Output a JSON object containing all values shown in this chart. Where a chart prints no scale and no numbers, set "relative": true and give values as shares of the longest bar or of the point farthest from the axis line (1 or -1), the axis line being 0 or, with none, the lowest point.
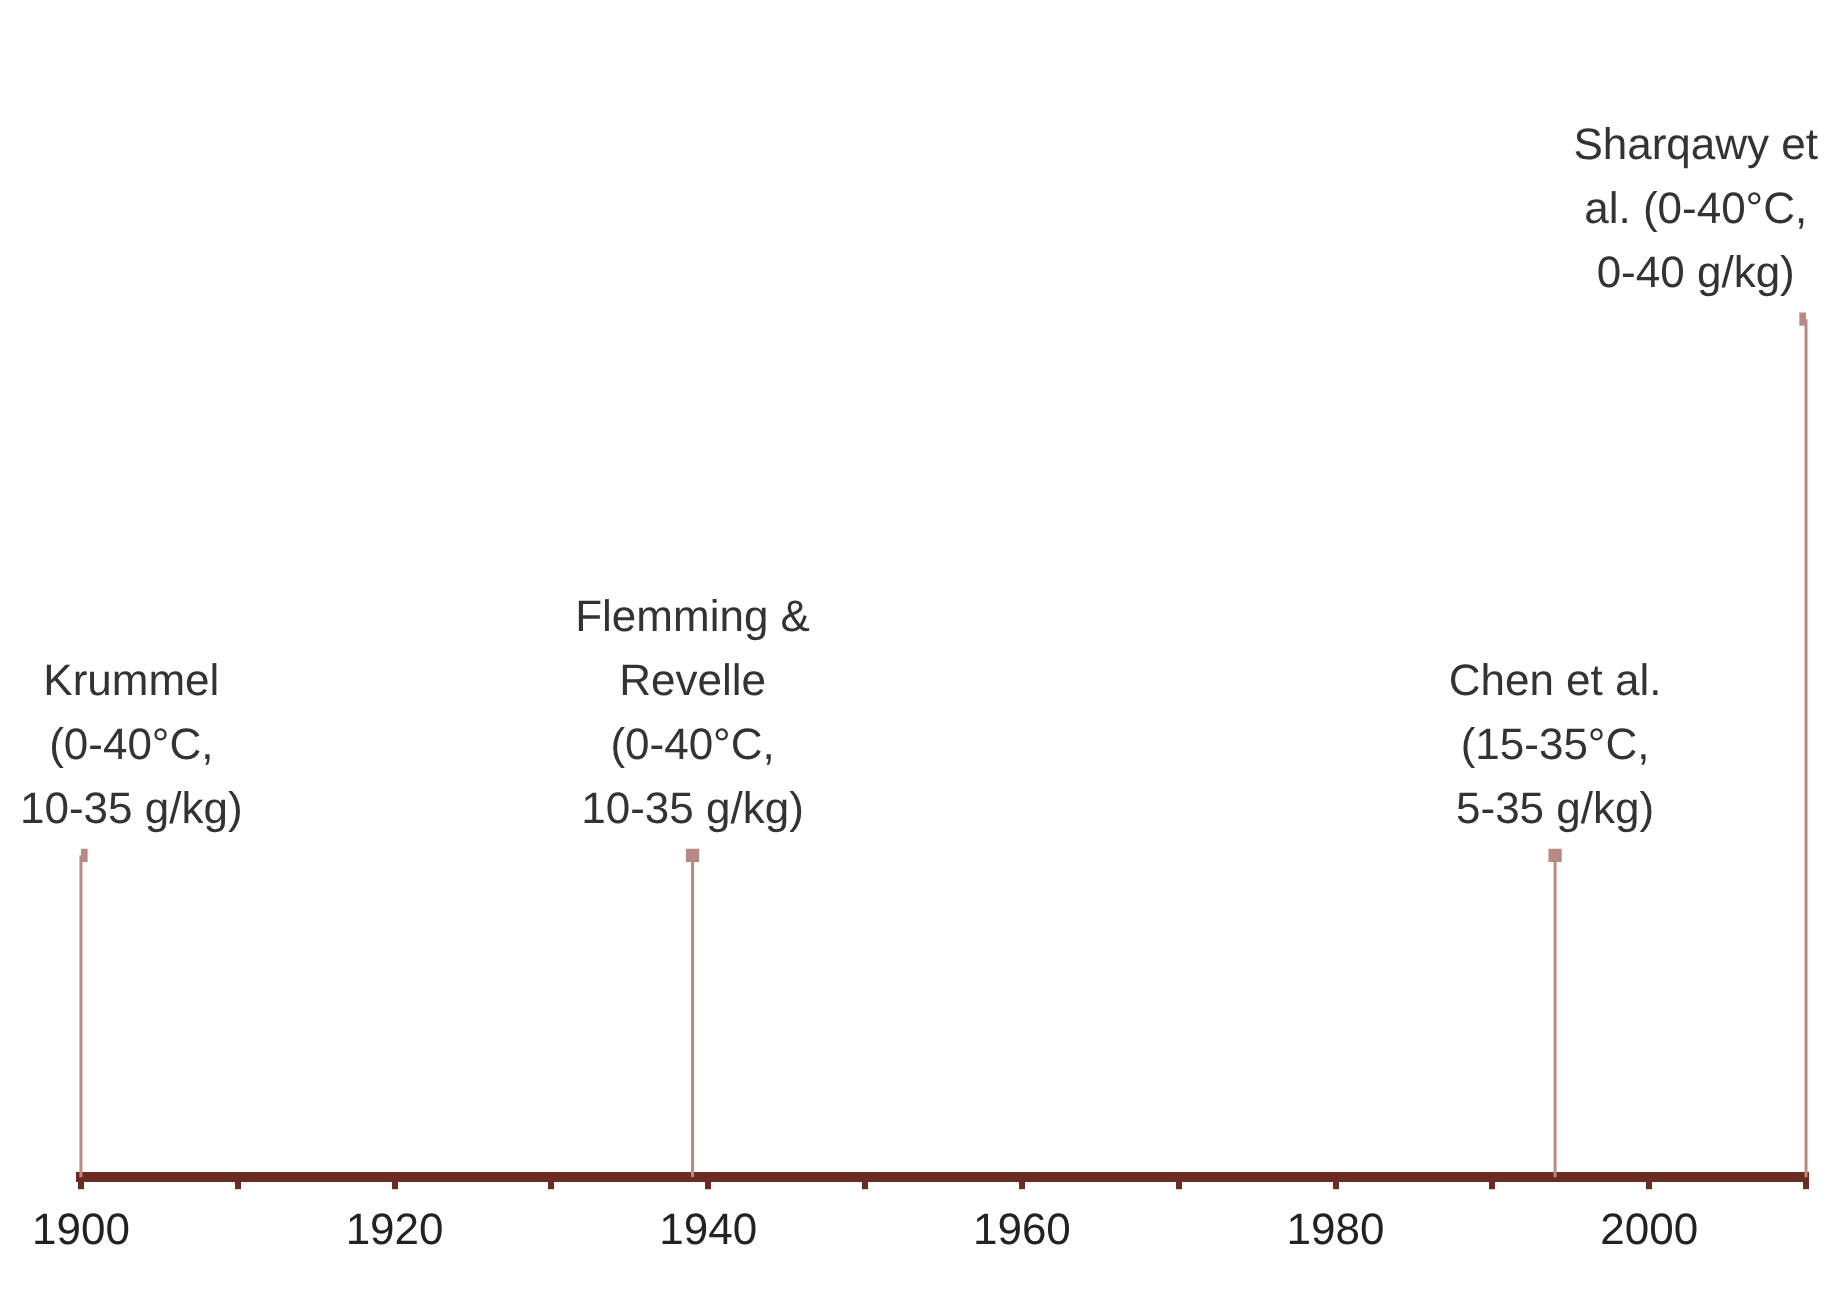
{
  "chart_data": {
    "type": "lollipop",
    "relative": true,
    "x": [
      1900,
      1939,
      1994,
      2010
    ],
    "series": [
      {
        "color": "#b98a84",
        "values": [
          0.375,
          0.375,
          0.375,
          1
        ]
      }
    ],
    "xlim": [
      1900,
      2010
    ],
    "xticks": [
      1900,
      {
        "value": 1910,
        "label": null
      },
      1920,
      {
        "value": 1930,
        "label": null
      },
      1940,
      {
        "value": 1950,
        "label": null
      },
      1960,
      {
        "value": 1970,
        "label": null
      },
      1980,
      {
        "value": 1990,
        "label": null
      },
      2000,
      {
        "value": 2010,
        "label": null
      }
    ],
    "annotations": [
      {
        "text": "Krummel (0-40°C, 10-35 g/kg)",
        "x": 1900,
        "y": 0.375
      },
      {
        "text": "Flemming & Revelle (0-40°C, 10-35 g/kg)",
        "x": 1939,
        "y": 0.375
      },
      {
        "text": "Chen et al. (15-35°C, 5-35 g/kg)",
        "x": 1994,
        "y": 0.375
      },
      {
        "text": "Sharqawy et al. (0-40°C, 0-40 g/kg)",
        "x": 2010,
        "y": 1
      }
    ]
  }
}
